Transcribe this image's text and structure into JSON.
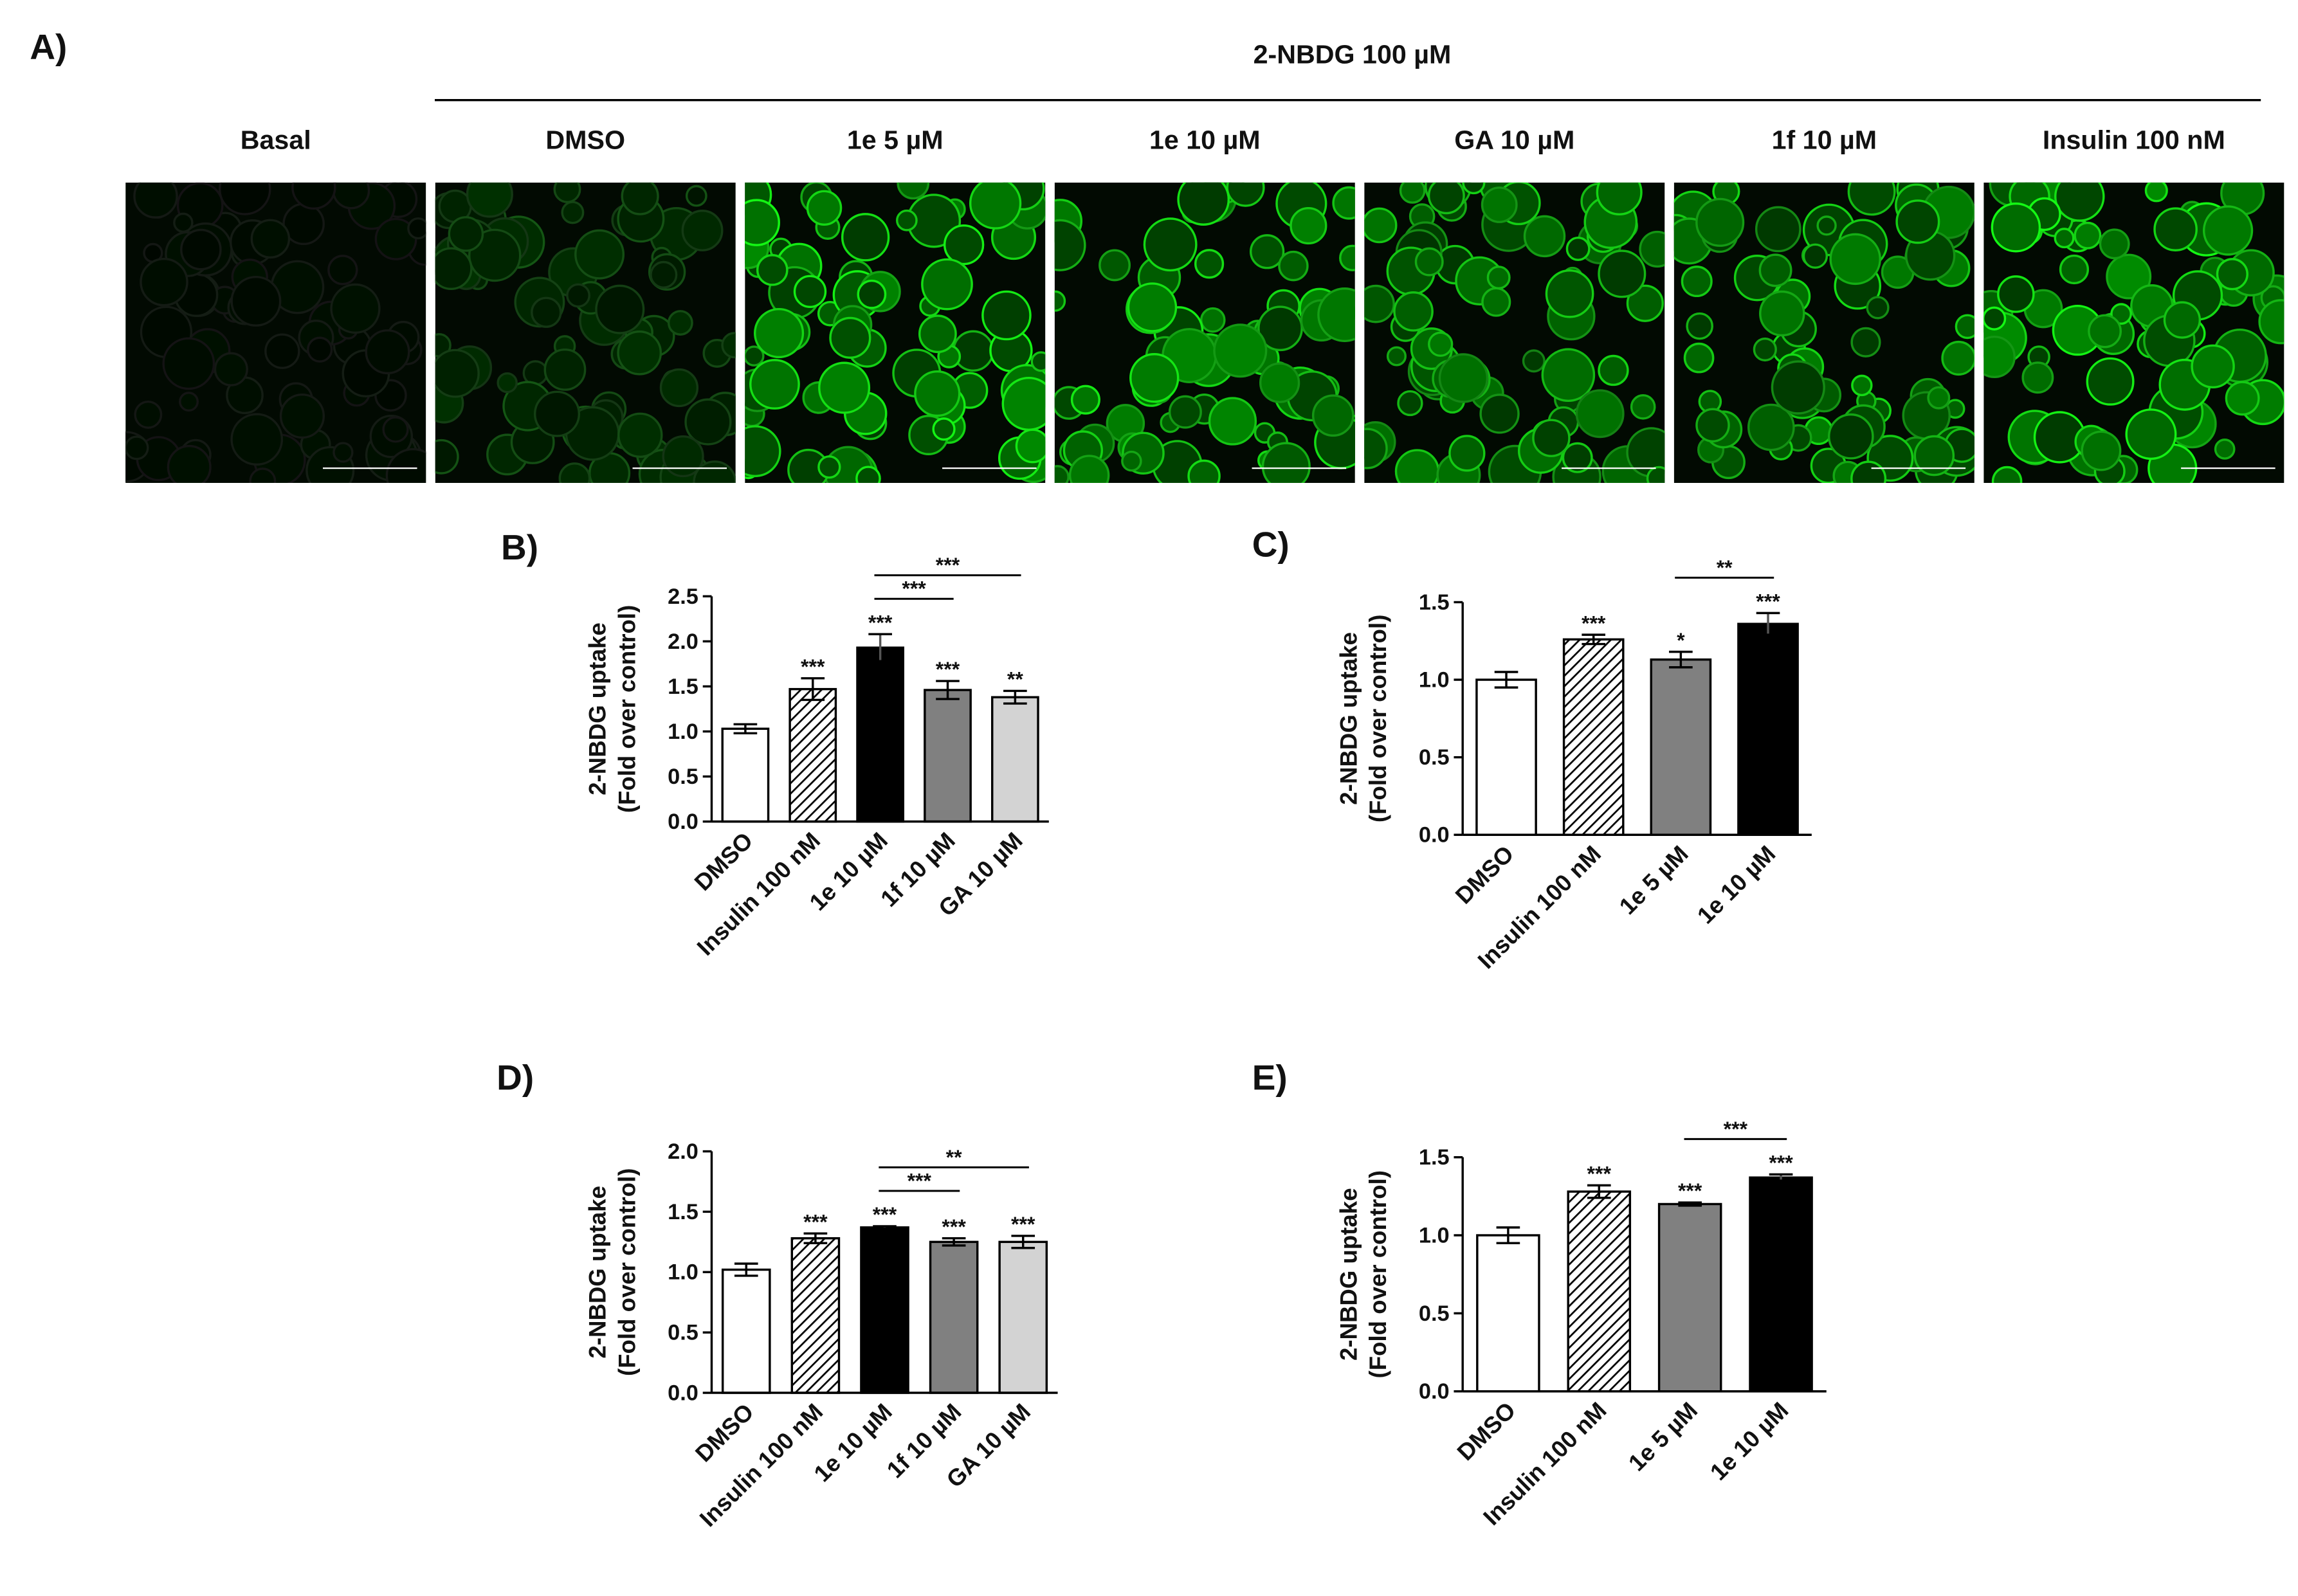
{
  "panel_a": {
    "label": "A)",
    "treatment": "2-NBDG 100 µM",
    "columns": [
      "Basal",
      "DMSO",
      "1e 5 µM",
      "1e 10 µM",
      "GA 10 µM",
      "1f 10 µM",
      "Insulin 100 nM"
    ]
  },
  "chart_data": [
    {
      "type": "bar",
      "panel": "B)",
      "ylabel": [
        "2-NBDG uptake",
        "(Fold over control)"
      ],
      "categories": [
        "DMSO",
        "Insulin 100 nM",
        "1e 10 µM",
        "1f 10 µM",
        "GA 10 µM"
      ],
      "values": [
        1.03,
        1.47,
        1.93,
        1.46,
        1.38
      ],
      "errors": [
        0.05,
        0.12,
        0.15,
        0.1,
        0.07
      ],
      "colors": [
        "#ffffff",
        "hatch",
        "#000000",
        "#808080",
        "#d3d3d3"
      ],
      "bar_labels": [
        null,
        "***",
        "***",
        "***",
        "**"
      ],
      "brackets": [
        {
          "from": "1e 10 µM",
          "to": "1f 10 µM",
          "label": "***"
        },
        {
          "from": "1e 10 µM",
          "to": "GA 10 µM",
          "label": "***"
        }
      ],
      "ylim": [
        0,
        2.5
      ],
      "yticks": [
        {
          "value": 0,
          "label": "0.0"
        },
        {
          "value": 0.5,
          "label": "0.5"
        },
        {
          "value": 1,
          "label": "1.0"
        },
        {
          "value": 1.5,
          "label": "1.5"
        },
        {
          "value": 2,
          "label": "2.0"
        },
        {
          "value": 2.5,
          "label": "2.5"
        }
      ]
    },
    {
      "type": "bar",
      "panel": "C)",
      "ylabel": [
        "2-NBDG uptake",
        "(Fold over control)"
      ],
      "categories": [
        "DMSO",
        "Insulin 100 nM",
        "1e 5 µM",
        "1e 10 µM"
      ],
      "values": [
        1.0,
        1.26,
        1.13,
        1.36
      ],
      "errors": [
        0.05,
        0.03,
        0.05,
        0.07
      ],
      "colors": [
        "#ffffff",
        "hatch",
        "#808080",
        "#000000"
      ],
      "bar_labels": [
        null,
        "***",
        "*",
        "***"
      ],
      "brackets": [
        {
          "from": "1e 5 µM",
          "to": "1e 10 µM",
          "label": "**"
        }
      ],
      "ylim": [
        0,
        1.5
      ],
      "yticks": [
        {
          "value": 0,
          "label": "0.0"
        },
        {
          "value": 0.5,
          "label": "0.5"
        },
        {
          "value": 1,
          "label": "1.0"
        },
        {
          "value": 1.5,
          "label": "1.5"
        }
      ]
    },
    {
      "type": "bar",
      "panel": "D)",
      "ylabel": [
        "2-NBDG uptake",
        "(Fold over control)"
      ],
      "categories": [
        "DMSO",
        "Insulin 100 nM",
        "1e 10 µM",
        "1f 10 µM",
        "GA 10 µM"
      ],
      "values": [
        1.02,
        1.28,
        1.37,
        1.25,
        1.25
      ],
      "errors": [
        0.05,
        0.04,
        0.01,
        0.03,
        0.05
      ],
      "colors": [
        "#ffffff",
        "hatch",
        "#000000",
        "#808080",
        "#d3d3d3"
      ],
      "bar_labels": [
        null,
        "***",
        "***",
        "***",
        "***"
      ],
      "brackets": [
        {
          "from": "1e 10 µM",
          "to": "1f 10 µM",
          "label": "***"
        },
        {
          "from": "1e 10 µM",
          "to": "GA 10 µM",
          "label": "**"
        }
      ],
      "ylim": [
        0,
        2.0
      ],
      "yticks": [
        {
          "value": 0,
          "label": "0.0"
        },
        {
          "value": 0.5,
          "label": "0.5"
        },
        {
          "value": 1,
          "label": "1.0"
        },
        {
          "value": 1.5,
          "label": "1.5"
        },
        {
          "value": 2,
          "label": "2.0"
        }
      ]
    },
    {
      "type": "bar",
      "panel": "E)",
      "ylabel": [
        "2-NBDG uptake",
        "(Fold over control)"
      ],
      "categories": [
        "DMSO",
        "Insulin 100 nM",
        "1e 5 µM",
        "1e 10 µM"
      ],
      "values": [
        1.0,
        1.28,
        1.2,
        1.37
      ],
      "errors": [
        0.05,
        0.04,
        0.01,
        0.02
      ],
      "colors": [
        "#ffffff",
        "hatch",
        "#808080",
        "#000000"
      ],
      "bar_labels": [
        null,
        "***",
        "***",
        "***"
      ],
      "brackets": [
        {
          "from": "1e 5 µM",
          "to": "1e 10 µM",
          "label": "***"
        }
      ],
      "ylim": [
        0,
        1.5
      ],
      "yticks": [
        {
          "value": 0,
          "label": "0.0"
        },
        {
          "value": 0.5,
          "label": "0.5"
        },
        {
          "value": 1,
          "label": "1.0"
        },
        {
          "value": 1.5,
          "label": "1.5"
        }
      ]
    }
  ]
}
